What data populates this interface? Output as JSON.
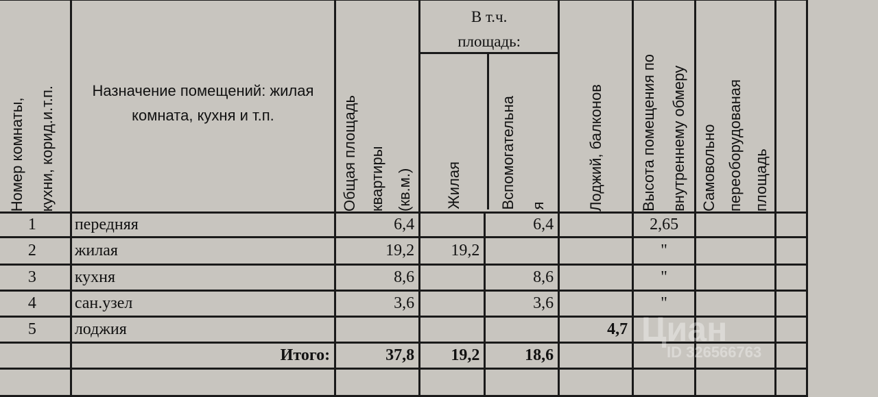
{
  "header": {
    "room_number": [
      "Номер комнаты,",
      "кухни, корид.и.т.п."
    ],
    "purpose": "Назначение помещений: жилая комната, кухня и т.п.",
    "total_area": [
      "Общая площадь",
      "квартиры",
      "(кв.м.)"
    ],
    "including": "В т.ч. площадь:",
    "living": "Жилая",
    "auxiliary": [
      "Вспомогательна",
      "я"
    ],
    "loggias": "Лоджий, балконов",
    "height": [
      "Высота помещения по",
      "внутреннему обмеру"
    ],
    "self_converted": [
      "Самовольно",
      "переоборудованая",
      "площадь"
    ]
  },
  "rows": [
    {
      "num": "1",
      "name": "передняя",
      "total": "6,4",
      "living": "",
      "aux": "6,4",
      "loggia": "",
      "height": "2,65"
    },
    {
      "num": "2",
      "name": "жилая",
      "total": "19,2",
      "living": "19,2",
      "aux": "",
      "loggia": "",
      "height": "\""
    },
    {
      "num": "3",
      "name": "кухня",
      "total": "8,6",
      "living": "",
      "aux": "8,6",
      "loggia": "",
      "height": "\""
    },
    {
      "num": "4",
      "name": "сан.узел",
      "total": "3,6",
      "living": "",
      "aux": "3,6",
      "loggia": "",
      "height": "\""
    },
    {
      "num": "5",
      "name": "лоджия",
      "total": "",
      "living": "",
      "aux": "",
      "loggia": "4,7",
      "height": ""
    }
  ],
  "totals": {
    "label": "Итого:",
    "total": "37,8",
    "living": "19,2",
    "aux": "18,6"
  },
  "watermark": {
    "brand": "Циан",
    "id": "ID 326566763"
  }
}
